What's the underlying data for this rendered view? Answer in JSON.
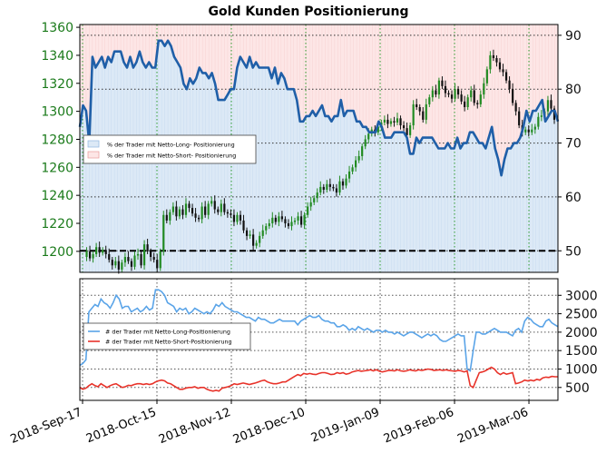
{
  "title": "Gold Kunden Positionierung",
  "colors": {
    "up_candle": "#228b22",
    "down_candle": "#111111",
    "long_pct_line": "#1f5fa8",
    "long_fill": "#dce9f6",
    "short_fill": "#fde6e6",
    "long_count_line": "#5aa4e8",
    "short_count_line": "#e8332a",
    "left_axis_text": "#1a7a1a",
    "right_axis_text": "#111111"
  },
  "chart_data": [
    {
      "type": "line",
      "title": "Gold Kunden Positionierung",
      "x_ticks": [
        "2018-Sep-17",
        "2018-Oct-15",
        "2018-Nov-12",
        "2018-Dec-10",
        "2019-Jan-09",
        "2019-Feb-06",
        "2019-Mar-06"
      ],
      "left_axis": {
        "ticks": [
          1200,
          1220,
          1240,
          1260,
          1280,
          1300,
          1320,
          1340,
          1360
        ],
        "range": [
          1185,
          1362
        ]
      },
      "right_axis": {
        "ticks": [
          50,
          60,
          70,
          80,
          90
        ],
        "range": [
          46,
          92
        ]
      },
      "reference_line": 50,
      "legend": {
        "position": "middle-left",
        "entries": [
          "% der Trader mit Netto-Long- Positionierung",
          "% der Trader mit Netto-Short- Positionierung"
        ]
      },
      "price_series": [
        1196,
        1200,
        1195,
        1198,
        1203,
        1199,
        1201,
        1198,
        1194,
        1190,
        1193,
        1187,
        1192,
        1196,
        1193,
        1189,
        1197,
        1198,
        1190,
        1205,
        1200,
        1196,
        1194,
        1188,
        1200,
        1226,
        1222,
        1228,
        1232,
        1225,
        1230,
        1226,
        1234,
        1231,
        1227,
        1224,
        1223,
        1232,
        1226,
        1234,
        1236,
        1230,
        1228,
        1234,
        1228,
        1227,
        1226,
        1221,
        1226,
        1222,
        1215,
        1211,
        1212,
        1204,
        1206,
        1211,
        1215,
        1218,
        1220,
        1224,
        1221,
        1225,
        1223,
        1220,
        1218,
        1221,
        1222,
        1225,
        1219,
        1226,
        1232,
        1235,
        1238,
        1242,
        1246,
        1244,
        1248,
        1246,
        1245,
        1242,
        1250,
        1247,
        1252,
        1257,
        1260,
        1265,
        1268,
        1275,
        1280,
        1284,
        1287,
        1285,
        1289,
        1292,
        1294,
        1291,
        1293,
        1292,
        1295,
        1290,
        1288,
        1283,
        1290,
        1305,
        1303,
        1300,
        1294,
        1305,
        1310,
        1315,
        1312,
        1322,
        1318,
        1313,
        1312,
        1309,
        1316,
        1312,
        1307,
        1303,
        1310,
        1315,
        1306,
        1305,
        1312,
        1320,
        1330,
        1340,
        1338,
        1335,
        1330,
        1328,
        1322,
        1316,
        1306,
        1300,
        1290,
        1285,
        1287,
        1285,
        1287,
        1289,
        1296,
        1297,
        1300,
        1308,
        1302,
        1294
      ],
      "long_pct_series": [
        73,
        77,
        76,
        70,
        86,
        84,
        85,
        86,
        84,
        86,
        85,
        87,
        87,
        87,
        85,
        84,
        86,
        84,
        85,
        87,
        85,
        84,
        85,
        84,
        84,
        89,
        89,
        88,
        89,
        88,
        86,
        85,
        84,
        81,
        80,
        82,
        81,
        82,
        84,
        83,
        83,
        82,
        83,
        81,
        78,
        78,
        78,
        79,
        80,
        80,
        84,
        86,
        85,
        84,
        86,
        84,
        85,
        84,
        84,
        84,
        84,
        82,
        84,
        81,
        83,
        82,
        80,
        80,
        80,
        78,
        74,
        74,
        75,
        75,
        76,
        75,
        76,
        77,
        75,
        75,
        74,
        75,
        75,
        78,
        75,
        76,
        76,
        76,
        74,
        74,
        73,
        73,
        72,
        72,
        72,
        74,
        73,
        71,
        71,
        71,
        72,
        72,
        72,
        72,
        71,
        68,
        68,
        71,
        70,
        71,
        71,
        71,
        71,
        70,
        69,
        69,
        69,
        70,
        69,
        69,
        71,
        69,
        70,
        70,
        72,
        72,
        71,
        70,
        70,
        69,
        71,
        73,
        69,
        67,
        64,
        67,
        69,
        69,
        70,
        70,
        71,
        73,
        76,
        74,
        76,
        76,
        77,
        78,
        74,
        75,
        76,
        76,
        74
      ],
      "series": [
        {
          "name": "% der Trader mit Netto-Long- Positionierung",
          "role": "line-right-axis"
        }
      ]
    },
    {
      "type": "line",
      "x_ticks": [
        "2018-Sep-17",
        "2018-Oct-15",
        "2018-Nov-12",
        "2018-Dec-10",
        "2019-Jan-09",
        "2019-Feb-06",
        "2019-Mar-06"
      ],
      "y_axis": {
        "ticks": [
          500,
          1000,
          1500,
          2000,
          2500,
          3000
        ],
        "range": [
          150,
          3450
        ]
      },
      "legend": {
        "position": "middle-left",
        "entries": [
          "# der Trader mit Netto-Long-Positionierung",
          "# der Trader mit Netto-Short-Positionierung"
        ]
      },
      "series": [
        {
          "name": "# der Trader mit Netto-Long-Positionierung",
          "values": [
            1100,
            1150,
            1250,
            2550,
            2650,
            2750,
            2700,
            2900,
            2800,
            2750,
            2650,
            2800,
            3000,
            2900,
            2650,
            2700,
            2700,
            2550,
            2600,
            2650,
            2550,
            2600,
            2700,
            2600,
            2650,
            3150,
            3150,
            3100,
            3000,
            2800,
            2750,
            2700,
            2550,
            2650,
            2600,
            2650,
            2500,
            2550,
            2650,
            2600,
            2550,
            2500,
            2550,
            2500,
            2600,
            2750,
            2700,
            2800,
            2700,
            2650,
            2600,
            2550,
            2550,
            2500,
            2450,
            2400,
            2400,
            2350,
            2300,
            2400,
            2350,
            2350,
            2300,
            2250,
            2250,
            2300,
            2350,
            2300,
            2300,
            2300,
            2300,
            2300,
            2200,
            2300,
            2350,
            2400,
            2450,
            2400,
            2400,
            2450,
            2350,
            2300,
            2300,
            2250,
            2250,
            2150,
            2150,
            2200,
            2150,
            2050,
            2100,
            2050,
            2150,
            2100,
            2050,
            2100,
            2050,
            2000,
            2050,
            2050,
            2000,
            2050,
            2000,
            2000,
            1950,
            2000,
            1950,
            1900,
            1950,
            2000,
            2000,
            1950,
            1900,
            1850,
            1900,
            1950,
            1900,
            1950,
            1900,
            1800,
            1750,
            1750,
            1800,
            1850,
            1900,
            1950,
            1900,
            1900,
            1000,
            950,
            1500,
            2000,
            2000,
            1950,
            1950,
            2000,
            2050,
            2100,
            2050,
            2000,
            2000,
            2000,
            1950,
            1900,
            2050,
            2100,
            2000,
            2300,
            2400,
            2350,
            2250,
            2200,
            2150,
            2150,
            2300,
            2350,
            2250,
            2200,
            2150
          ]
        },
        {
          "name": "# der Trader mit Netto-Short-Positionierung",
          "values": [
            500,
            450,
            480,
            550,
            600,
            550,
            520,
            600,
            550,
            500,
            550,
            580,
            600,
            550,
            500,
            520,
            560,
            550,
            580,
            600,
            600,
            580,
            600,
            580,
            600,
            650,
            680,
            700,
            680,
            620,
            600,
            550,
            500,
            450,
            450,
            480,
            500,
            500,
            520,
            480,
            500,
            500,
            450,
            420,
            400,
            420,
            400,
            480,
            500,
            520,
            550,
            600,
            580,
            600,
            620,
            600,
            580,
            600,
            620,
            650,
            680,
            700,
            650,
            620,
            600,
            600,
            620,
            650,
            650,
            700,
            750,
            800,
            850,
            820,
            880,
            860,
            880,
            860,
            850,
            880,
            900,
            900,
            880,
            850,
            860,
            900,
            880,
            900,
            860,
            880,
            920,
            940,
            960,
            940,
            950,
            960,
            980,
            950,
            980,
            940,
            920,
            940,
            960,
            960,
            950,
            980,
            950,
            940,
            950,
            980,
            960,
            950,
            980,
            960,
            980,
            1000,
            990,
            960,
            970,
            980,
            960,
            980,
            960,
            950,
            940,
            960,
            950,
            920,
            950,
            550,
            500,
            700,
            900,
            920,
            950,
            1000,
            1050,
            1000,
            900,
            850,
            900,
            860,
            880,
            900,
            600,
            620,
            650,
            700,
            680,
            700,
            680,
            720,
            700,
            760,
            780,
            770,
            800,
            790,
            790
          ]
        }
      ]
    }
  ]
}
